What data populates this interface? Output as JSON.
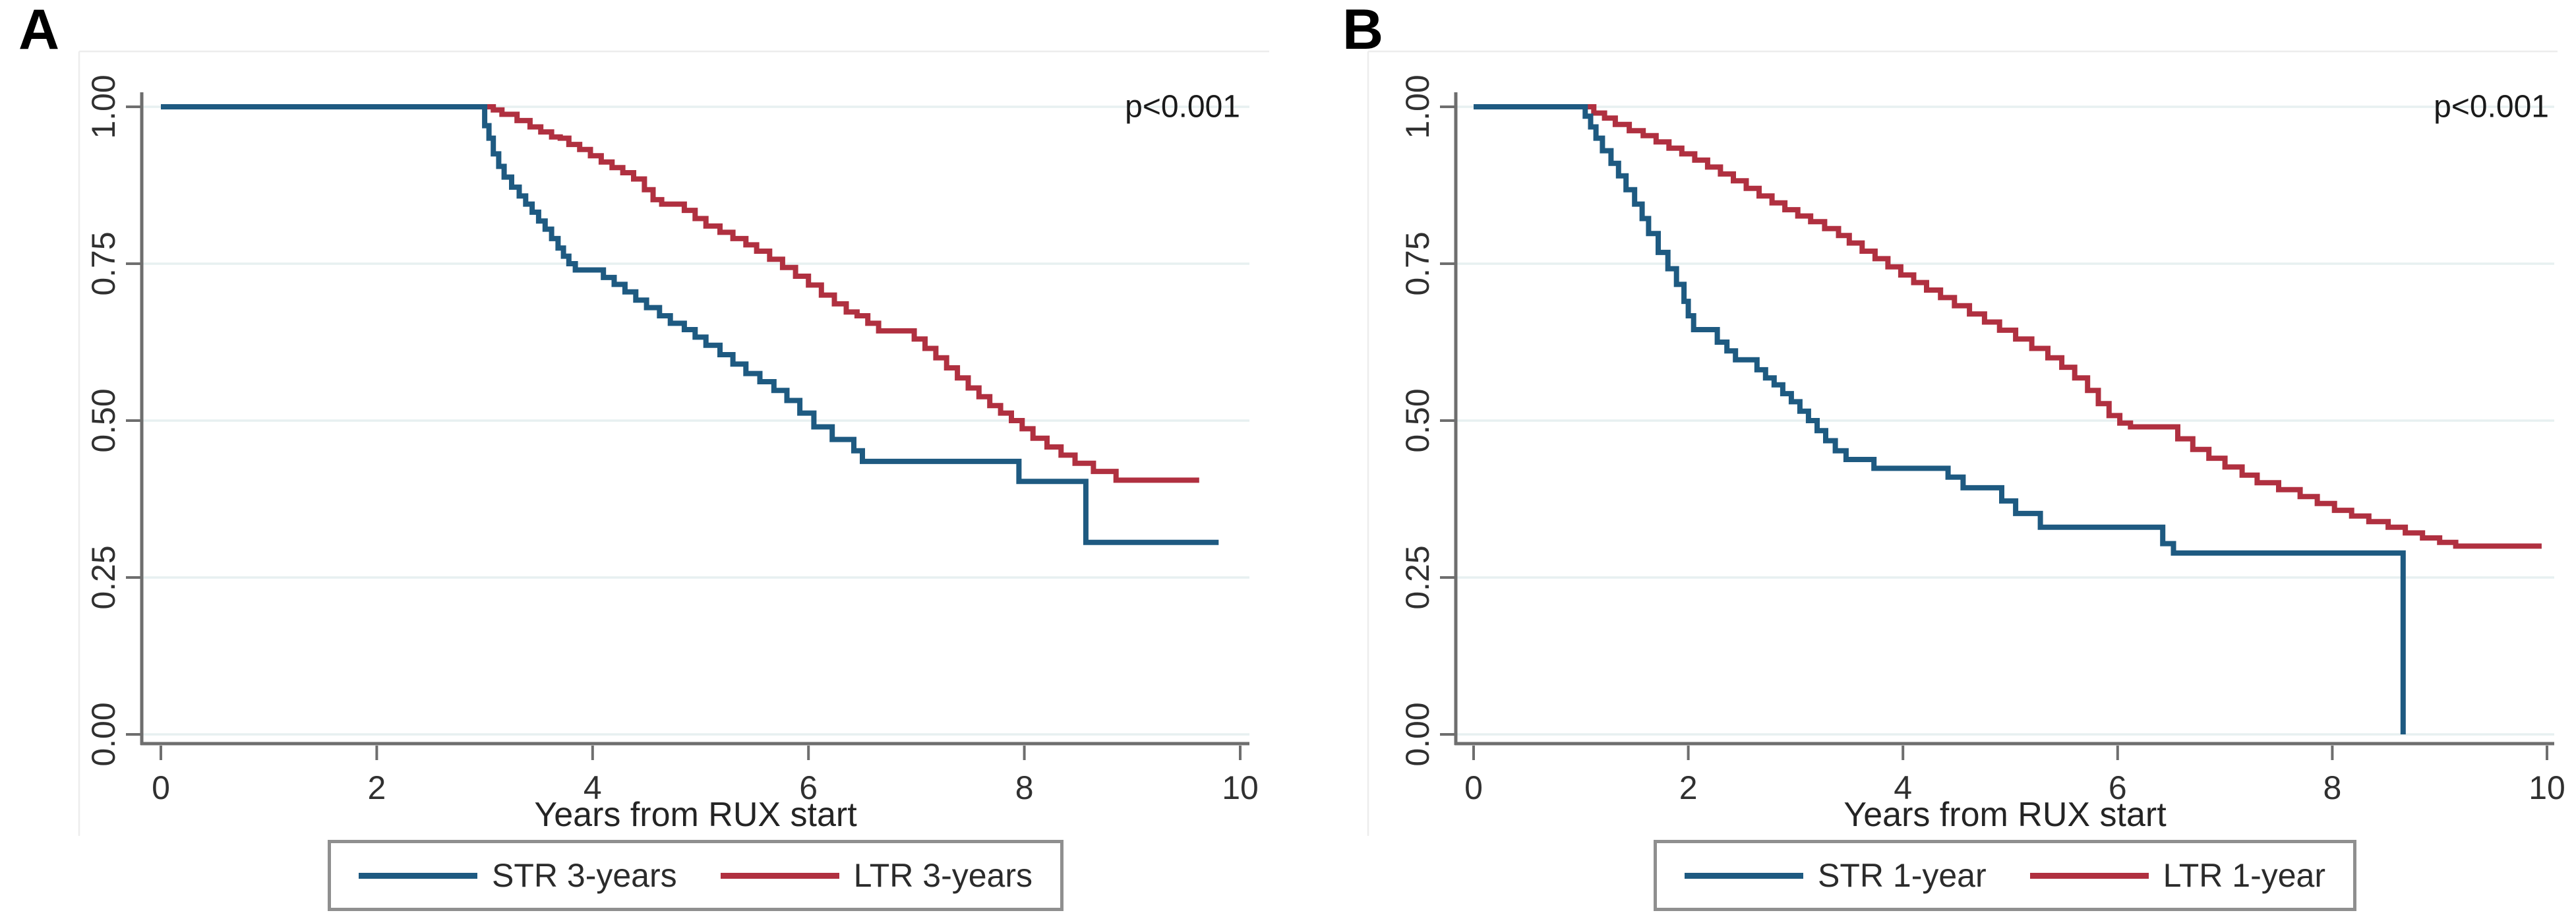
{
  "figure": {
    "background": "#ffffff"
  },
  "style": {
    "grid_color": "#e7f0f1",
    "axis_color": "#6e6e6e",
    "tick_label_color": "#303030",
    "annotation_color": "#1a1a1a",
    "region_line_color": "#ededed",
    "legend_border_color": "#8f8f8f",
    "series_blue": "#1e5a81",
    "series_red": "#b03040"
  },
  "chart_data": [
    {
      "type": "line",
      "subtype": "kaplan-meier-step",
      "panel_label": "A",
      "annotation": "p<0.001",
      "xlabel": "Years from RUX start",
      "ylabel": "",
      "xlim": [
        0,
        10
      ],
      "ylim": [
        0.0,
        1.0
      ],
      "grid": true,
      "legend_position": "bottom-center",
      "xticks": {
        "values": [
          0,
          2,
          4,
          6,
          8,
          10
        ],
        "labels": [
          "0",
          "2",
          "4",
          "6",
          "8",
          "10"
        ]
      },
      "yticks": {
        "values": [
          1.0,
          0.75,
          0.5,
          0.25,
          0.0
        ],
        "labels": [
          "1.00",
          "0.75",
          "0.50",
          "0.25",
          "0.00"
        ]
      },
      "series": [
        {
          "name": "STR 3-years",
          "color": "#1e5a81",
          "end_x": 9.8,
          "points": [
            [
              0,
              1.0
            ],
            [
              2.95,
              1.0
            ],
            [
              3.0,
              0.97
            ],
            [
              3.04,
              0.95
            ],
            [
              3.08,
              0.925
            ],
            [
              3.13,
              0.905
            ],
            [
              3.18,
              0.888
            ],
            [
              3.25,
              0.872
            ],
            [
              3.32,
              0.858
            ],
            [
              3.38,
              0.845
            ],
            [
              3.44,
              0.832
            ],
            [
              3.5,
              0.818
            ],
            [
              3.56,
              0.805
            ],
            [
              3.62,
              0.79
            ],
            [
              3.68,
              0.775
            ],
            [
              3.73,
              0.762
            ],
            [
              3.78,
              0.75
            ],
            [
              3.84,
              0.74
            ],
            [
              4.1,
              0.728
            ],
            [
              4.2,
              0.717
            ],
            [
              4.3,
              0.705
            ],
            [
              4.4,
              0.692
            ],
            [
              4.5,
              0.68
            ],
            [
              4.62,
              0.667
            ],
            [
              4.72,
              0.655
            ],
            [
              4.85,
              0.645
            ],
            [
              4.95,
              0.633
            ],
            [
              5.05,
              0.62
            ],
            [
              5.18,
              0.605
            ],
            [
              5.3,
              0.59
            ],
            [
              5.42,
              0.575
            ],
            [
              5.55,
              0.562
            ],
            [
              5.68,
              0.548
            ],
            [
              5.8,
              0.532
            ],
            [
              5.92,
              0.512
            ],
            [
              6.05,
              0.49
            ],
            [
              6.22,
              0.47
            ],
            [
              6.42,
              0.452
            ],
            [
              6.5,
              0.435
            ],
            [
              7.95,
              0.403
            ],
            [
              8.57,
              0.306
            ]
          ]
        },
        {
          "name": "LTR 3-years",
          "color": "#b03040",
          "end_x": 9.62,
          "points": [
            [
              0,
              1.0
            ],
            [
              3.0,
              1.0
            ],
            [
              3.08,
              0.995
            ],
            [
              3.16,
              0.988
            ],
            [
              3.3,
              0.978
            ],
            [
              3.42,
              0.968
            ],
            [
              3.52,
              0.96
            ],
            [
              3.62,
              0.952
            ],
            [
              3.7,
              0.95
            ],
            [
              3.78,
              0.94
            ],
            [
              3.88,
              0.932
            ],
            [
              3.98,
              0.922
            ],
            [
              4.08,
              0.912
            ],
            [
              4.18,
              0.903
            ],
            [
              4.28,
              0.895
            ],
            [
              4.38,
              0.885
            ],
            [
              4.48,
              0.868
            ],
            [
              4.56,
              0.852
            ],
            [
              4.64,
              0.845
            ],
            [
              4.85,
              0.835
            ],
            [
              4.95,
              0.822
            ],
            [
              5.05,
              0.81
            ],
            [
              5.18,
              0.8
            ],
            [
              5.3,
              0.79
            ],
            [
              5.42,
              0.78
            ],
            [
              5.52,
              0.77
            ],
            [
              5.64,
              0.757
            ],
            [
              5.76,
              0.744
            ],
            [
              5.88,
              0.73
            ],
            [
              6.0,
              0.716
            ],
            [
              6.12,
              0.7
            ],
            [
              6.24,
              0.686
            ],
            [
              6.35,
              0.673
            ],
            [
              6.45,
              0.667
            ],
            [
              6.55,
              0.655
            ],
            [
              6.65,
              0.643
            ],
            [
              6.98,
              0.63
            ],
            [
              7.08,
              0.615
            ],
            [
              7.18,
              0.6
            ],
            [
              7.28,
              0.584
            ],
            [
              7.38,
              0.568
            ],
            [
              7.48,
              0.552
            ],
            [
              7.58,
              0.538
            ],
            [
              7.68,
              0.524
            ],
            [
              7.78,
              0.512
            ],
            [
              7.88,
              0.5
            ],
            [
              7.98,
              0.487
            ],
            [
              8.08,
              0.472
            ],
            [
              8.21,
              0.458
            ],
            [
              8.34,
              0.445
            ],
            [
              8.47,
              0.432
            ],
            [
              8.64,
              0.419
            ],
            [
              8.85,
              0.405
            ]
          ]
        }
      ]
    },
    {
      "type": "line",
      "subtype": "kaplan-meier-step",
      "panel_label": "B",
      "annotation": "p<0.001",
      "xlabel": "Years from RUX start",
      "ylabel": "",
      "xlim": [
        0,
        10
      ],
      "ylim": [
        0.0,
        1.0
      ],
      "grid": true,
      "legend_position": "bottom-center",
      "xticks": {
        "values": [
          0,
          2,
          4,
          6,
          8,
          10
        ],
        "labels": [
          "0",
          "2",
          "4",
          "6",
          "8",
          "10"
        ]
      },
      "yticks": {
        "values": [
          1.0,
          0.75,
          0.5,
          0.25,
          0.0
        ],
        "labels": [
          "1.00",
          "0.75",
          "0.50",
          "0.25",
          "0.00"
        ]
      },
      "series": [
        {
          "name": "STR 1-year",
          "color": "#1e5a81",
          "end_x": 8.66,
          "points": [
            [
              0,
              1.0
            ],
            [
              1.0,
              1.0
            ],
            [
              1.04,
              0.985
            ],
            [
              1.09,
              0.968
            ],
            [
              1.14,
              0.95
            ],
            [
              1.2,
              0.93
            ],
            [
              1.28,
              0.91
            ],
            [
              1.35,
              0.89
            ],
            [
              1.42,
              0.868
            ],
            [
              1.5,
              0.845
            ],
            [
              1.57,
              0.822
            ],
            [
              1.63,
              0.798
            ],
            [
              1.72,
              0.768
            ],
            [
              1.81,
              0.742
            ],
            [
              1.89,
              0.717
            ],
            [
              1.96,
              0.69
            ],
            [
              2.0,
              0.667
            ],
            [
              2.05,
              0.645
            ],
            [
              2.27,
              0.625
            ],
            [
              2.36,
              0.611
            ],
            [
              2.44,
              0.597
            ],
            [
              2.64,
              0.581
            ],
            [
              2.72,
              0.568
            ],
            [
              2.8,
              0.557
            ],
            [
              2.88,
              0.543
            ],
            [
              2.96,
              0.53
            ],
            [
              3.04,
              0.515
            ],
            [
              3.12,
              0.5
            ],
            [
              3.2,
              0.484
            ],
            [
              3.28,
              0.468
            ],
            [
              3.37,
              0.452
            ],
            [
              3.47,
              0.438
            ],
            [
              3.73,
              0.424
            ],
            [
              4.42,
              0.41
            ],
            [
              4.56,
              0.393
            ],
            [
              4.92,
              0.372
            ],
            [
              5.05,
              0.352
            ],
            [
              5.28,
              0.33
            ],
            [
              6.42,
              0.304
            ],
            [
              6.52,
              0.289
            ],
            [
              8.66,
              0.0
            ]
          ]
        },
        {
          "name": "LTR 1-year",
          "color": "#b03040",
          "end_x": 9.95,
          "points": [
            [
              0,
              1.0
            ],
            [
              1.05,
              1.0
            ],
            [
              1.12,
              0.99
            ],
            [
              1.22,
              0.982
            ],
            [
              1.32,
              0.972
            ],
            [
              1.45,
              0.962
            ],
            [
              1.58,
              0.954
            ],
            [
              1.7,
              0.944
            ],
            [
              1.82,
              0.934
            ],
            [
              1.94,
              0.925
            ],
            [
              2.06,
              0.915
            ],
            [
              2.18,
              0.904
            ],
            [
              2.3,
              0.893
            ],
            [
              2.42,
              0.882
            ],
            [
              2.54,
              0.87
            ],
            [
              2.66,
              0.858
            ],
            [
              2.78,
              0.847
            ],
            [
              2.9,
              0.836
            ],
            [
              3.02,
              0.826
            ],
            [
              3.14,
              0.817
            ],
            [
              3.27,
              0.806
            ],
            [
              3.4,
              0.795
            ],
            [
              3.5,
              0.783
            ],
            [
              3.62,
              0.77
            ],
            [
              3.74,
              0.758
            ],
            [
              3.86,
              0.745
            ],
            [
              3.98,
              0.732
            ],
            [
              4.1,
              0.72
            ],
            [
              4.22,
              0.708
            ],
            [
              4.35,
              0.696
            ],
            [
              4.48,
              0.683
            ],
            [
              4.62,
              0.67
            ],
            [
              4.76,
              0.657
            ],
            [
              4.9,
              0.644
            ],
            [
              5.05,
              0.63
            ],
            [
              5.2,
              0.615
            ],
            [
              5.35,
              0.6
            ],
            [
              5.48,
              0.585
            ],
            [
              5.6,
              0.568
            ],
            [
              5.72,
              0.548
            ],
            [
              5.82,
              0.527
            ],
            [
              5.92,
              0.508
            ],
            [
              6.02,
              0.496
            ],
            [
              6.12,
              0.49
            ],
            [
              6.56,
              0.471
            ],
            [
              6.7,
              0.454
            ],
            [
              6.85,
              0.44
            ],
            [
              7.0,
              0.426
            ],
            [
              7.16,
              0.413
            ],
            [
              7.3,
              0.401
            ],
            [
              7.5,
              0.39
            ],
            [
              7.7,
              0.379
            ],
            [
              7.86,
              0.368
            ],
            [
              8.02,
              0.357
            ],
            [
              8.18,
              0.348
            ],
            [
              8.34,
              0.339
            ],
            [
              8.52,
              0.33
            ],
            [
              8.68,
              0.321
            ],
            [
              8.84,
              0.313
            ],
            [
              9.0,
              0.306
            ],
            [
              9.15,
              0.3
            ]
          ]
        }
      ]
    }
  ]
}
